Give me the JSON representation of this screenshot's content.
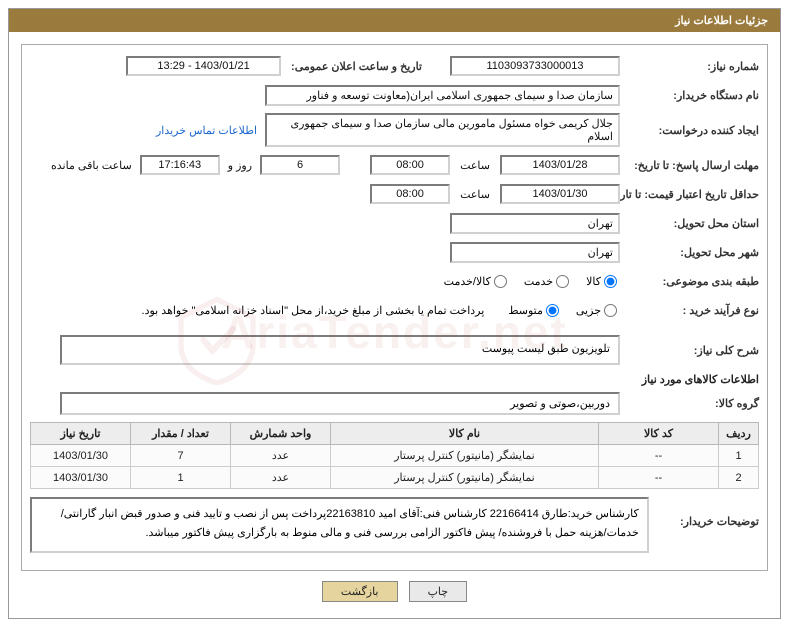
{
  "panel_title": "جزئیات اطلاعات نیاز",
  "fields": {
    "need_no_lbl": "شماره نیاز:",
    "need_no": "1103093733000013",
    "announce_lbl": "تاریخ و ساعت اعلان عمومی:",
    "announce_val": "1403/01/21 - 13:29",
    "buyer_org_lbl": "نام دستگاه خریدار:",
    "buyer_org": "سازمان صدا و سیمای جمهوری اسلامی ایران(معاونت توسعه و فناور",
    "requester_lbl": "ایجاد کننده درخواست:",
    "requester": "جلال کریمی خواه مسئول مامورین مالی  سازمان صدا و سیمای جمهوری اسلام",
    "contact_link": "اطلاعات تماس خریدار",
    "deadline_lbl": "مهلت ارسال پاسخ: تا تاریخ:",
    "deadline_date": "1403/01/28",
    "time_lbl": "ساعت",
    "deadline_time": "08:00",
    "days_left": "6",
    "days_and_lbl": "روز و",
    "time_left": "17:16:43",
    "time_left_lbl": "ساعت باقی مانده",
    "min_valid_lbl": "حداقل تاریخ اعتبار قیمت: تا تاریخ:",
    "min_valid_date": "1403/01/30",
    "min_valid_time": "08:00",
    "province_lbl": "استان محل تحویل:",
    "province": "تهران",
    "city_lbl": "شهر محل تحویل:",
    "city": "تهران",
    "category_lbl": "طبقه بندی موضوعی:",
    "cat1": "کالا",
    "cat2": "خدمت",
    "cat3": "کالا/خدمت",
    "process_lbl": "نوع فرآیند خرید :",
    "proc1": "جزیی",
    "proc2": "متوسط",
    "payment_note": "پرداخت تمام یا بخشی از مبلغ خرید،از محل \"اسناد خزانه اسلامی\" خواهد بود.",
    "summary_lbl": "شرح کلی نیاز:",
    "summary": "تلویزیون طبق لیست پیوست",
    "goods_hdr": "اطلاعات کالاهای مورد نیاز",
    "group_lbl": "گروه کالا:",
    "group": "دوربین،صوتی و تصویر",
    "buyer_notes_lbl": "توضیحات خریدار:",
    "buyer_notes": "کارشناس خرید:طارق 22166414   کارشناس فنی:آقای امید 22163810پرداخت پس از نصب و تایید فنی و صدور قبض انبار گارانتی/خدمات/هزینه حمل با فروشنده/ پیش فاکتور الزامی\nبررسی فنی و مالی منوط به بارگزاری پیش فاکتور میباشد.",
    "btn_print": "چاپ",
    "btn_back": "بازگشت"
  },
  "table": {
    "headers": [
      "ردیف",
      "کد کالا",
      "نام کالا",
      "واحد شمارش",
      "تعداد / مقدار",
      "تاریخ نیاز"
    ],
    "col_widths": [
      "40px",
      "120px",
      "auto",
      "100px",
      "100px",
      "100px"
    ],
    "rows": [
      [
        "1",
        "--",
        "نمایشگر (مانیتور) کنترل پرستار",
        "عدد",
        "7",
        "1403/01/30"
      ],
      [
        "2",
        "--",
        "نمایشگر (مانیتور) کنترل پرستار",
        "عدد",
        "1",
        "1403/01/30"
      ]
    ]
  },
  "colors": {
    "header_bg": "#9a7a3d",
    "link": "#1a66cc",
    "btn_back_bg": "#e6d49e"
  },
  "watermark_text": "AriaTender.net"
}
